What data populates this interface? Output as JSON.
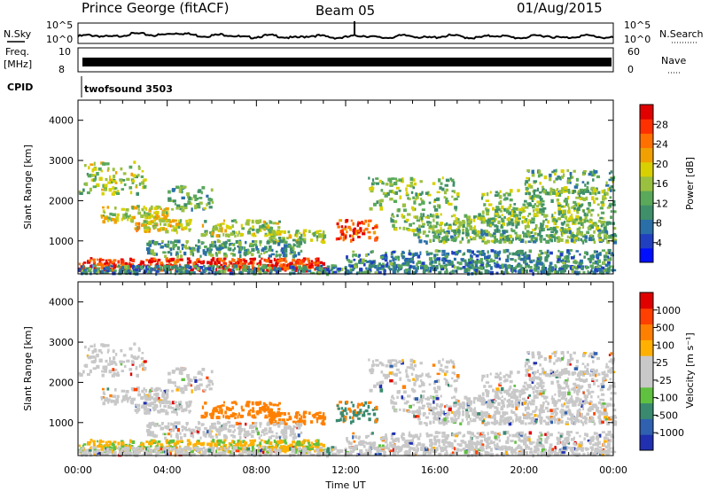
{
  "header": {
    "station": "Prince George (fitACF)",
    "beam": "Beam 05",
    "date": "01/Aug/2015"
  },
  "strips": {
    "nsky_label": "N.Sky",
    "nsearch_label": "N.Search",
    "log_top": "10^5",
    "log_bottom": "10^0",
    "freq_label": "Freq.",
    "freq_unit": "[MHz]",
    "freq_ticks": [
      "10",
      "8"
    ],
    "nave_label": "Nave",
    "nave_ticks": [
      "60",
      "0"
    ],
    "cpid_label": "CPID",
    "cpid_value": "twofsound 3503"
  },
  "chart_data": [
    {
      "type": "heatmap",
      "name": "power",
      "ylabel": "Slant Range [km]",
      "ylim": [
        180,
        4500
      ],
      "yticks": [
        1000,
        2000,
        3000,
        4000
      ],
      "xlim": [
        0,
        24
      ],
      "xticks": [
        "00:00",
        "04:00",
        "08:00",
        "12:00",
        "16:00",
        "20:00",
        "00:00"
      ],
      "colorbar_label": "Power [dB]",
      "colorbar_ticks": [
        "4",
        "8",
        "12",
        "16",
        "20",
        "24",
        "28"
      ],
      "colorbar_colors": [
        "#0010ff",
        "#2040c0",
        "#2a6fa8",
        "#3f8f6a",
        "#5aa85a",
        "#9ac040",
        "#d8d000",
        "#f0a000",
        "#ff7000",
        "#ff3000",
        "#e00000"
      ]
    },
    {
      "type": "heatmap",
      "name": "velocity",
      "ylabel": "Slant Range [km]",
      "ylim": [
        180,
        4500
      ],
      "yticks": [
        1000,
        2000,
        3000,
        4000
      ],
      "xlim": [
        0,
        24
      ],
      "xlabel": "Time UT",
      "xticks": [
        "00:00",
        "04:00",
        "08:00",
        "12:00",
        "16:00",
        "20:00",
        "00:00"
      ],
      "colorbar_label": "Velocity [m s⁻¹]",
      "colorbar_ticks": [
        "1000",
        "500",
        "100",
        "25",
        "-25",
        "-100",
        "-500",
        "-1000"
      ],
      "colorbar_colors": [
        "#2030b0",
        "#3060b0",
        "#3a8a70",
        "#60c040",
        "#c8c8c8",
        "#c8c8c8",
        "#ffb000",
        "#ff8000",
        "#ff4000",
        "#e00000"
      ]
    }
  ]
}
